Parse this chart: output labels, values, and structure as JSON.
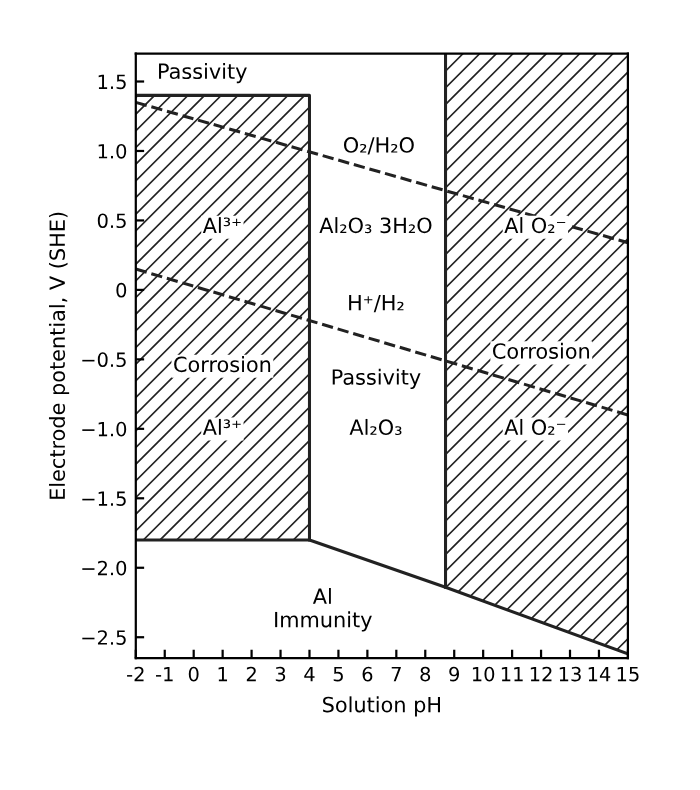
{
  "chart_data": {
    "type": "line",
    "xlabel": "Solution pH",
    "ylabel": "Electrode potential, V (SHE)",
    "xlim": [
      -2,
      15
    ],
    "ylim": [
      -2.65,
      1.7
    ],
    "xticks": [
      -2,
      -1,
      0,
      1,
      2,
      3,
      4,
      5,
      6,
      7,
      8,
      9,
      10,
      11,
      12,
      13,
      14,
      15
    ],
    "yticks": [
      1.5,
      {
        "value": 1.0,
        "label": "1.0"
      },
      0.5,
      0,
      {
        "value": -0.5,
        "label": "−0.5"
      },
      {
        "value": -1.0,
        "label": "−1.0"
      },
      {
        "value": -1.5,
        "label": "−1.5"
      },
      {
        "value": -2.0,
        "label": "−2.0"
      },
      {
        "value": -2.5,
        "label": "−2.5"
      }
    ],
    "grid": false,
    "legend": false,
    "series": [
      {
        "color": "#222222",
        "line_style": "solid",
        "x": [
          -2,
          4,
          4,
          8.7,
          15
        ],
        "values": [
          -1.8,
          -1.8,
          -1.8,
          -2.14,
          -2.62
        ],
        "lower": [
          -1.8,
          -1.8,
          null,
          -2.14,
          -2.62
        ],
        "upper": [
          1.4,
          1.4,
          null,
          1.7,
          1.7
        ]
      },
      {
        "color": "#222222",
        "line_style": "solid",
        "x": [
          -2,
          4,
          4
        ],
        "values": [
          1.4,
          1.4,
          -1.8
        ]
      },
      {
        "color": "#222222",
        "line_style": "solid",
        "x": [
          8.7,
          8.7
        ],
        "values": [
          1.7,
          -2.14
        ]
      },
      {
        "color": "#222222",
        "line_style": "dashed",
        "x": [
          -2,
          15
        ],
        "values": [
          1.35,
          0.34
        ]
      },
      {
        "color": "#222222",
        "line_style": "dashed",
        "x": [
          -2,
          15
        ],
        "values": [
          0.15,
          -0.9
        ]
      }
    ],
    "annotations": [
      "Passivity",
      "O₂/H₂O",
      "Al³⁺",
      "Al₂O₃ 3H₂O",
      "Al O₂⁻",
      "H⁺/H₂",
      "Corrosion",
      "Passivity",
      "Corrosion",
      "Al³⁺",
      "Al₂O₃",
      "Al O₂⁻",
      "Al\nImmunity"
    ]
  }
}
